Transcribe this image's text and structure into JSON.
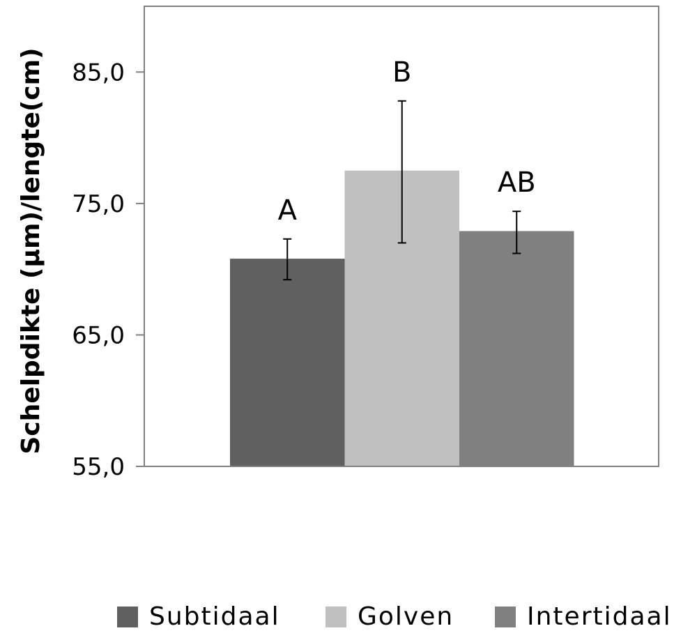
{
  "chart_data": {
    "type": "bar",
    "ylabel": "Schelpdikte (µm)/lengte(cm)",
    "xlabel": "",
    "ylim": [
      55,
      90
    ],
    "yticks": [
      55,
      65,
      75,
      85
    ],
    "ytick_labels": [
      "55,0",
      "65,0",
      "75,0",
      "85,0"
    ],
    "legend_position": "bottom",
    "series": [
      {
        "name": "Subtidaal",
        "value": 70.8,
        "error_low": 69.2,
        "error_high": 72.3,
        "sig_label": "A",
        "color": "#606060"
      },
      {
        "name": "Golven",
        "value": 77.5,
        "error_low": 72.0,
        "error_high": 82.8,
        "sig_label": "B",
        "color": "#c0c0c0"
      },
      {
        "name": "Intertidaal",
        "value": 72.9,
        "error_low": 71.2,
        "error_high": 74.4,
        "sig_label": "AB",
        "color": "#808080"
      }
    ],
    "grid": false
  }
}
